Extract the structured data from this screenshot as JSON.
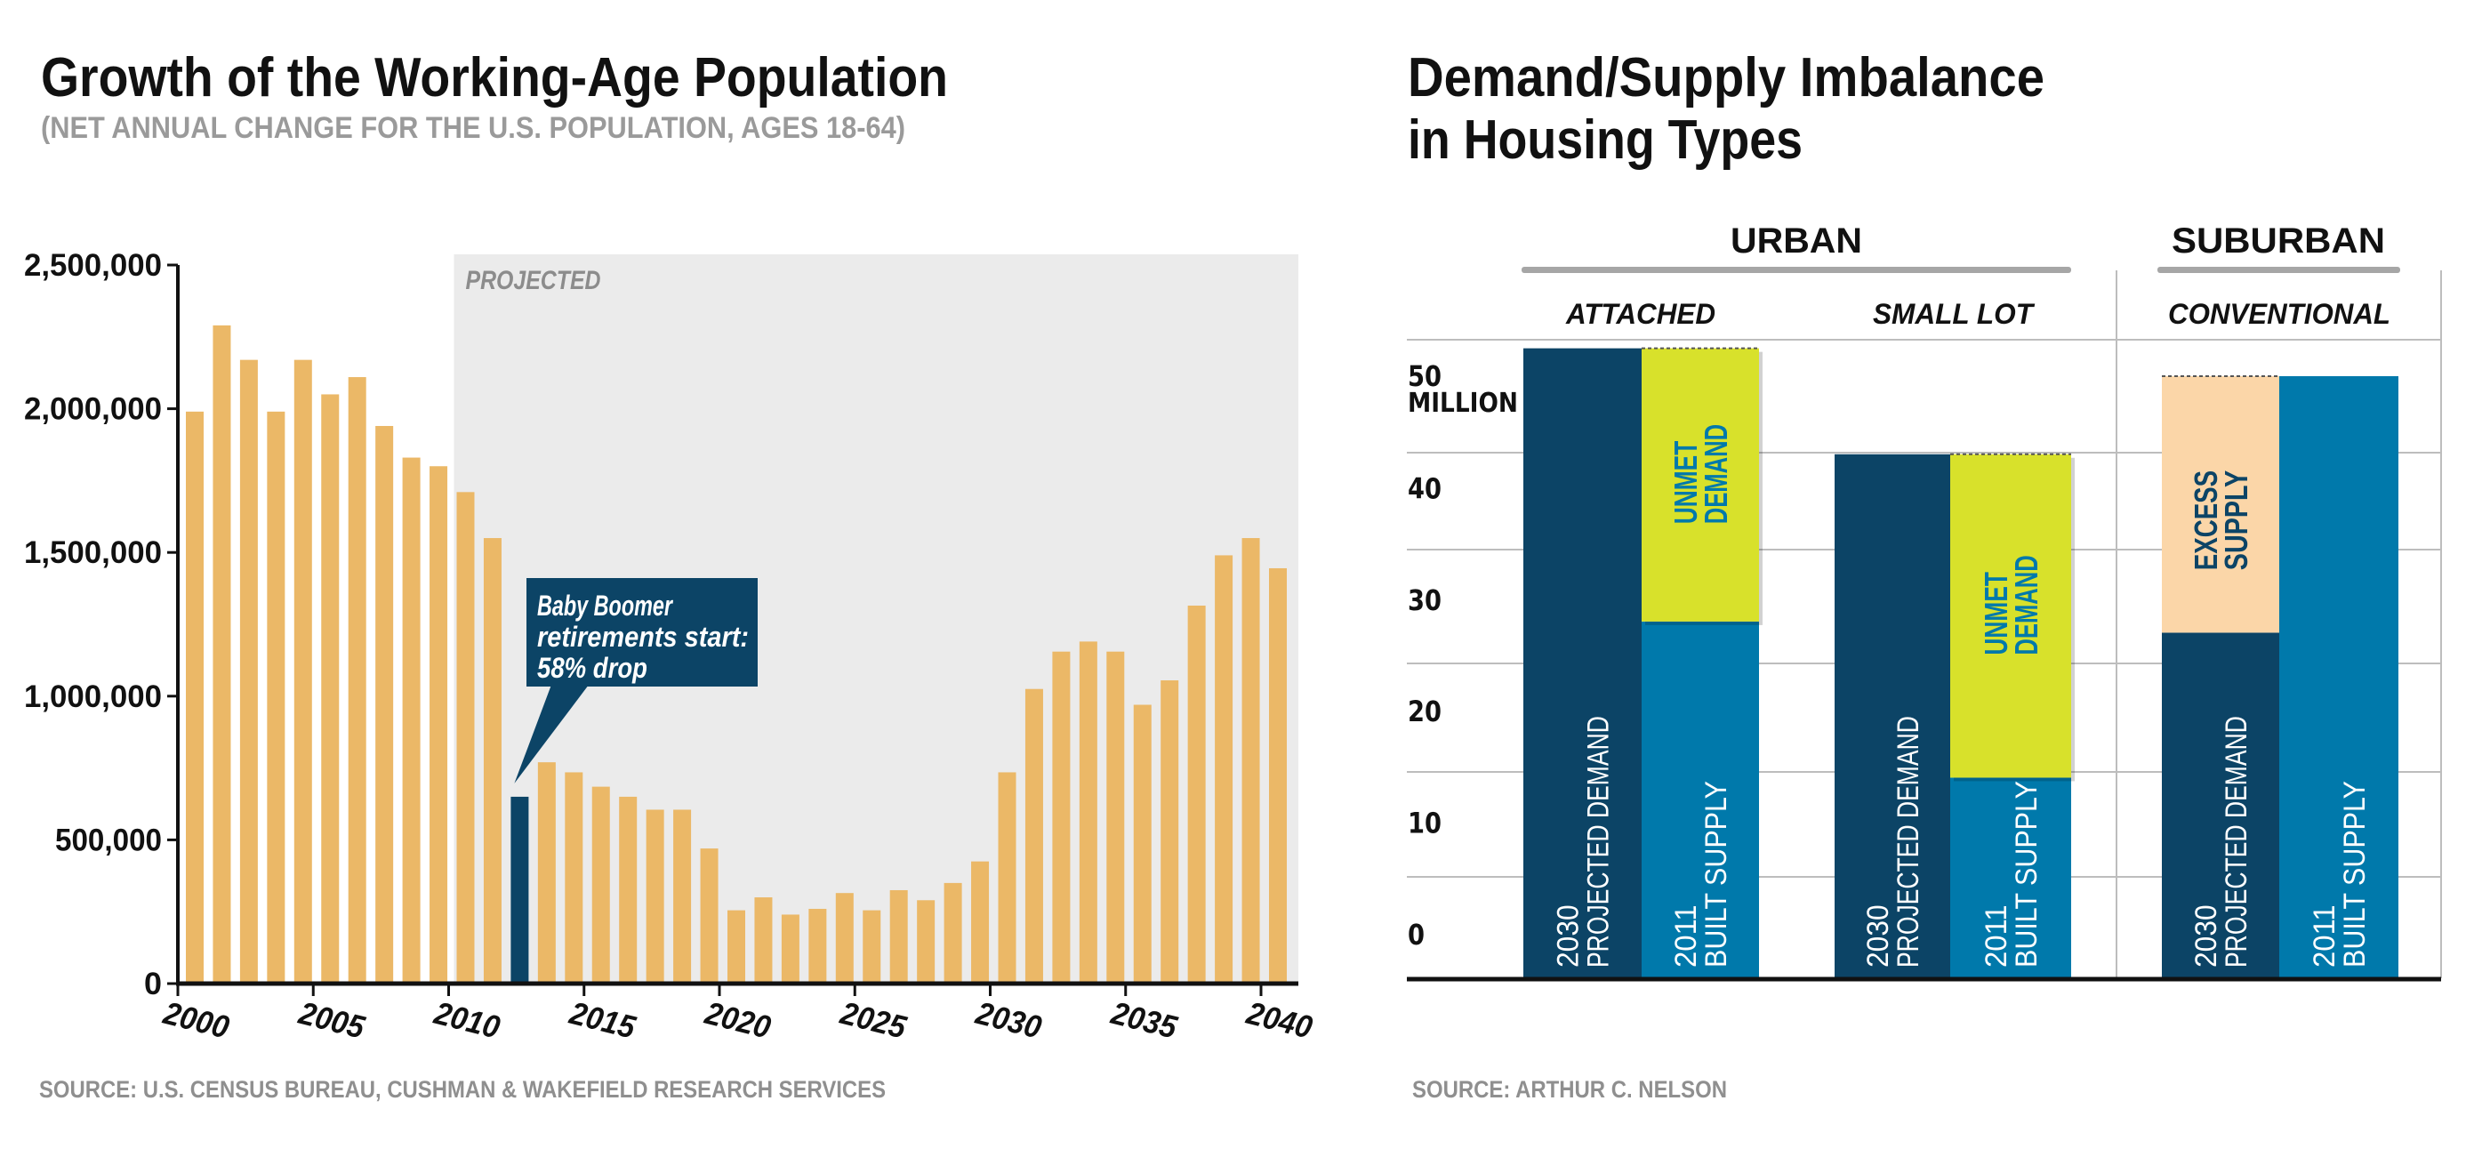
{
  "colors": {
    "gold": "#ebb867",
    "navy": "#0c4466",
    "blue": "#0079ab",
    "lime": "#d8e12b",
    "peach": "#fbd6a8",
    "projected_bg": "#ebebeb",
    "grid": "#bdbdbd",
    "underline": "#a6a6a6"
  },
  "chart_data": [
    {
      "type": "bar",
      "title": "Growth of the Working-Age Population",
      "subtitle": "(NET ANNUAL CHANGE FOR THE U.S. POPULATION, AGES 18-64)",
      "xlabel": "",
      "ylabel": "",
      "ylim": [
        0,
        2500000
      ],
      "yticks": [
        0,
        500000,
        1000000,
        1500000,
        2000000,
        2500000
      ],
      "ytick_labels": [
        "0",
        "500,000",
        "1,000,000",
        "1,500,000",
        "2,000,000",
        "2,500,000"
      ],
      "xticks": [
        2000,
        2005,
        2010,
        2015,
        2020,
        2025,
        2030,
        2035,
        2040
      ],
      "xtick_labels": [
        "2000",
        "2005",
        "2010",
        "2015",
        "2020",
        "2025",
        "2030",
        "2035",
        "2040"
      ],
      "grid": false,
      "projected_region": {
        "from": 2010,
        "to": 2041,
        "label": "PROJECTED"
      },
      "highlight": {
        "year": 2012,
        "color": "navy"
      },
      "annotation": {
        "lines": [
          "Baby Boomer",
          "retirements start:",
          "58% drop"
        ],
        "target_year": 2012
      },
      "categories": [
        2000,
        2001,
        2002,
        2003,
        2004,
        2005,
        2006,
        2007,
        2008,
        2009,
        2010,
        2011,
        2012,
        2013,
        2014,
        2015,
        2016,
        2017,
        2018,
        2019,
        2020,
        2021,
        2022,
        2023,
        2024,
        2025,
        2026,
        2027,
        2028,
        2029,
        2030,
        2031,
        2032,
        2033,
        2034,
        2035,
        2036,
        2037,
        2038,
        2039,
        2040
      ],
      "values": [
        1990000,
        2290000,
        2170000,
        1990000,
        2170000,
        2050000,
        2110000,
        1940000,
        1830000,
        1800000,
        1710000,
        1550000,
        650000,
        770000,
        735000,
        685000,
        650000,
        605000,
        605000,
        470000,
        255000,
        300000,
        240000,
        260000,
        315000,
        255000,
        325000,
        290000,
        350000,
        425000,
        735000,
        1025000,
        1155000,
        1190000,
        1155000,
        970000,
        1055000,
        1315000,
        1490000,
        1550000,
        1445000
      ],
      "source": "SOURCE: U.S. CENSUS BUREAU, CUSHMAN & WAKEFIELD RESEARCH SERVICES"
    },
    {
      "type": "bar",
      "title_lines": [
        "Demand/Supply Imbalance",
        "in Housing Types"
      ],
      "ylabel": "MILLION",
      "ylim": [
        0,
        55
      ],
      "ytick_labels": [
        {
          "value": 50,
          "text": "50"
        },
        {
          "value": 40,
          "text": "40"
        },
        {
          "value": 30,
          "text": "30"
        },
        {
          "value": 20,
          "text": "20"
        },
        {
          "value": 10,
          "text": "10"
        },
        {
          "value": 0,
          "text": "0"
        }
      ],
      "unit_label": "MILLION",
      "groups": [
        {
          "label": "URBAN",
          "categories": [
            "ATTACHED",
            "SMALL LOT"
          ]
        },
        {
          "label": "SUBURBAN",
          "categories": [
            "CONVENTIONAL"
          ]
        }
      ],
      "categories": [
        "ATTACHED",
        "SMALL LOT",
        "CONVENTIONAL"
      ],
      "series": [
        {
          "name": "2030 PROJECTED DEMAND",
          "label_lines": [
            "2030",
            "PROJECTED DEMAND"
          ],
          "color": "navy",
          "values": [
            52.5,
            43,
            27
          ]
        },
        {
          "name": "2011 BUILT SUPPLY",
          "label_lines": [
            "2011",
            "BUILT SUPPLY"
          ],
          "color": "blue",
          "values": [
            28,
            14,
            50
          ]
        }
      ],
      "gaps": [
        {
          "category": "ATTACHED",
          "kind": "UNMET DEMAND",
          "label_lines": [
            "UNMET",
            "DEMAND"
          ],
          "from": 28,
          "to": 52.5,
          "on_series": "2011 BUILT SUPPLY",
          "color": "lime"
        },
        {
          "category": "SMALL LOT",
          "kind": "UNMET DEMAND",
          "label_lines": [
            "UNMET",
            "DEMAND"
          ],
          "from": 14,
          "to": 43,
          "on_series": "2011 BUILT SUPPLY",
          "color": "lime"
        },
        {
          "category": "CONVENTIONAL",
          "kind": "EXCESS SUPPLY",
          "label_lines": [
            "EXCESS",
            "SUPPLY"
          ],
          "from": 27,
          "to": 50,
          "on_series": "2030 PROJECTED DEMAND",
          "color": "peach"
        }
      ],
      "source": "SOURCE: ARTHUR C. NELSON"
    }
  ]
}
